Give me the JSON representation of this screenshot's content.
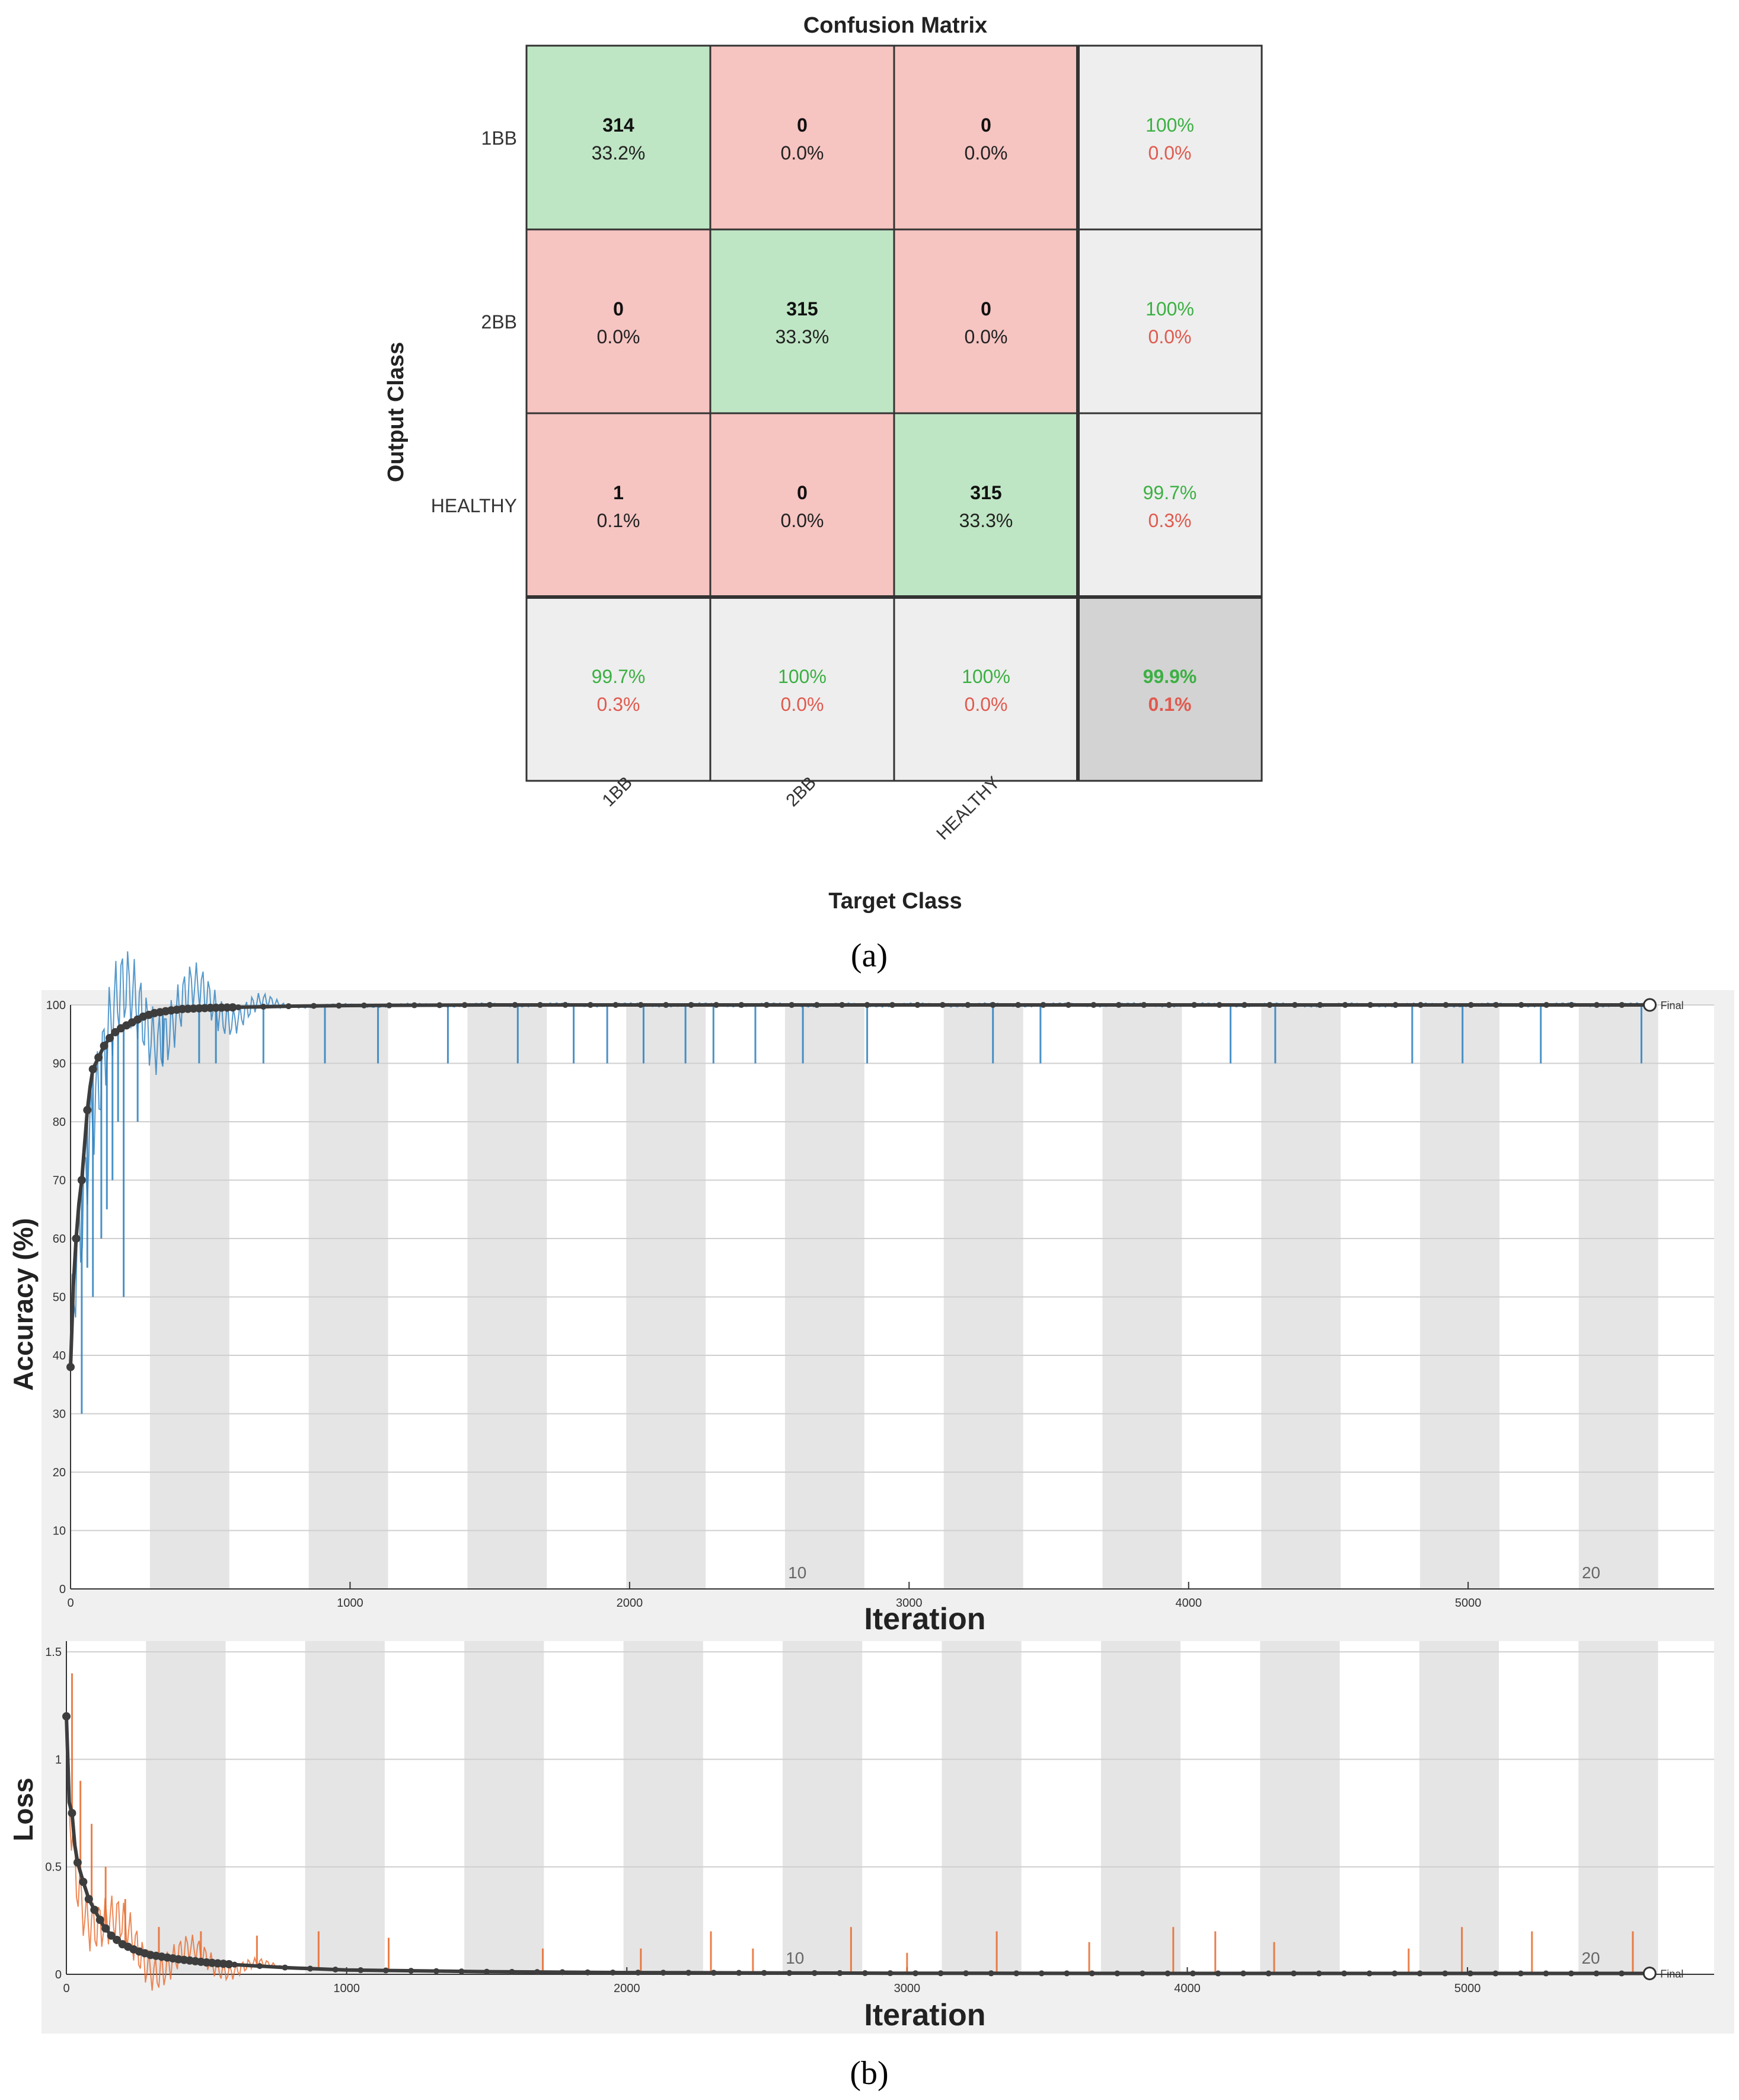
{
  "colors": {
    "correct_bg": "#bfe6c4",
    "wrong_bg": "#f6c4c1",
    "summary_bg": "#eeeeee",
    "total_bg": "#d3d3d3",
    "green_text": "#3cb043",
    "red_text": "#e05a4f",
    "accuracy_line": "#2a7fbf",
    "loss_line": "#e8692a",
    "smoothed": "#3d3d3d",
    "epoch_band": "#e5e5e5",
    "panel_bg": "#f0f0f0"
  },
  "captions": {
    "a": "(a)",
    "b": "(b)"
  },
  "chart_data": [
    {
      "type": "heatmap",
      "title": "Confusion Matrix",
      "xlabel": "Target Class",
      "ylabel": "Output Class",
      "output_classes": [
        "1BB",
        "2BB",
        "HEALTHY"
      ],
      "target_classes": [
        "1BB",
        "2BB",
        "HEALTHY"
      ],
      "cells": [
        [
          {
            "count": "314",
            "pct": "33.2%"
          },
          {
            "count": "0",
            "pct": "0.0%"
          },
          {
            "count": "0",
            "pct": "0.0%"
          }
        ],
        [
          {
            "count": "0",
            "pct": "0.0%"
          },
          {
            "count": "315",
            "pct": "33.3%"
          },
          {
            "count": "0",
            "pct": "0.0%"
          }
        ],
        [
          {
            "count": "1",
            "pct": "0.1%"
          },
          {
            "count": "0",
            "pct": "0.0%"
          },
          {
            "count": "315",
            "pct": "33.3%"
          }
        ]
      ],
      "row_summary": [
        {
          "good": "100%",
          "bad": "0.0%"
        },
        {
          "good": "100%",
          "bad": "0.0%"
        },
        {
          "good": "99.7%",
          "bad": "0.3%"
        }
      ],
      "col_summary": [
        {
          "good": "99.7%",
          "bad": "0.3%"
        },
        {
          "good": "100%",
          "bad": "0.0%"
        },
        {
          "good": "100%",
          "bad": "0.0%"
        }
      ],
      "overall": {
        "good": "99.9%",
        "bad": "0.1%"
      }
    },
    {
      "type": "line",
      "title": "",
      "xlabel": "Iteration",
      "ylabel": "Accuracy (%)",
      "xlim": [
        0,
        5880
      ],
      "ylim": [
        0,
        100
      ],
      "xticks": [
        "0",
        "1000",
        "2000",
        "3000",
        "4000",
        "5000"
      ],
      "yticks": [
        "0",
        "10",
        "20",
        "30",
        "40",
        "50",
        "60",
        "70",
        "80",
        "90",
        "100"
      ],
      "epoch_labels": [
        {
          "epoch": 10,
          "iteration": 2600,
          "text": "10"
        },
        {
          "epoch": 20,
          "iteration": 5440,
          "text": "20"
        }
      ],
      "epoch_bands": [
        [
          284,
          568
        ],
        [
          852,
          1136
        ],
        [
          1420,
          1704
        ],
        [
          1988,
          2272
        ],
        [
          2556,
          2840
        ],
        [
          3124,
          3408
        ],
        [
          3692,
          3976
        ],
        [
          4260,
          4544
        ],
        [
          4828,
          5112
        ],
        [
          5396,
          5680
        ]
      ],
      "final_label": "Final",
      "final_point": [
        5650,
        100
      ],
      "series": [
        {
          "name": "smoothed",
          "x": [
            0,
            5,
            10,
            20,
            30,
            40,
            50,
            60,
            70,
            80,
            100,
            120,
            150,
            180,
            220,
            260,
            300,
            350,
            400,
            500,
            600,
            700,
            800,
            1000,
            1500,
            2000,
            3000,
            4000,
            5000,
            5650
          ],
          "y": [
            38,
            45,
            52,
            60,
            66,
            70,
            76,
            82,
            86,
            89,
            91,
            93,
            95,
            96,
            97,
            98,
            98.6,
            99,
            99.3,
            99.5,
            99.6,
            99.7,
            99.8,
            99.9,
            100,
            100,
            100,
            100,
            100,
            100
          ]
        },
        {
          "name": "raw_spikes_x",
          "x": [
            40,
            60,
            80,
            110,
            130,
            150,
            170,
            190,
            240,
            330,
            460,
            520,
            690,
            910,
            1100,
            1350,
            1600,
            1800,
            1920,
            2050,
            2200,
            2300,
            2450,
            2620,
            2850,
            3300,
            3470,
            4150,
            4310,
            4800,
            4980,
            5260,
            5620
          ],
          "y": [
            30,
            55,
            50,
            60,
            65,
            70,
            80,
            50,
            80,
            90,
            90,
            90,
            90,
            90,
            90,
            90,
            90,
            90,
            90,
            90,
            90,
            90,
            90,
            90,
            90,
            90,
            90,
            90,
            90,
            90,
            90,
            90,
            90
          ]
        }
      ]
    },
    {
      "type": "line",
      "title": "",
      "xlabel": "Iteration",
      "ylabel": "Loss",
      "xlim": [
        0,
        5880
      ],
      "ylim": [
        0,
        1.55
      ],
      "xticks": [
        "0",
        "1000",
        "2000",
        "3000",
        "4000",
        "5000"
      ],
      "yticks": [
        "0",
        "0.5",
        "1",
        "1.5"
      ],
      "epoch_labels": [
        {
          "epoch": 10,
          "iteration": 2600,
          "text": "10"
        },
        {
          "epoch": 20,
          "iteration": 5440,
          "text": "20"
        }
      ],
      "final_label": "Final",
      "final_point": [
        5650,
        0.004
      ],
      "series": [
        {
          "name": "smoothed",
          "x": [
            0,
            5,
            10,
            20,
            30,
            40,
            60,
            80,
            100,
            130,
            160,
            200,
            250,
            300,
            400,
            500,
            600,
            800,
            1000,
            1500,
            2000,
            3000,
            4000,
            5000,
            5650
          ],
          "y": [
            1.2,
            1.0,
            0.8,
            0.75,
            0.6,
            0.52,
            0.43,
            0.35,
            0.3,
            0.23,
            0.18,
            0.14,
            0.11,
            0.09,
            0.07,
            0.055,
            0.045,
            0.03,
            0.02,
            0.012,
            0.008,
            0.005,
            0.004,
            0.004,
            0.004
          ]
        },
        {
          "name": "raw_spikes",
          "x": [
            20,
            50,
            90,
            140,
            210,
            330,
            480,
            680,
            900,
            1150,
            1700,
            2050,
            2300,
            2450,
            2800,
            3000,
            3320,
            3650,
            3950,
            4100,
            4310,
            4790,
            4980,
            5230,
            5590
          ],
          "y": [
            1.4,
            0.9,
            0.7,
            0.5,
            0.35,
            0.22,
            0.2,
            0.18,
            0.2,
            0.17,
            0.12,
            0.12,
            0.2,
            0.12,
            0.22,
            0.1,
            0.2,
            0.15,
            0.22,
            0.2,
            0.15,
            0.12,
            0.22,
            0.2,
            0.2
          ]
        }
      ]
    }
  ]
}
